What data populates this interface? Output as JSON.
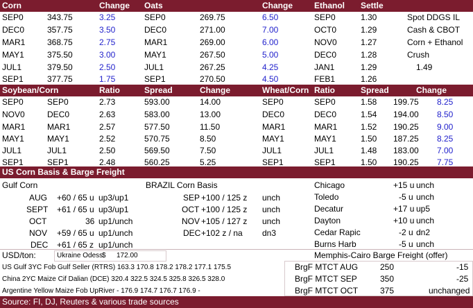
{
  "top_header": {
    "corn": "Corn",
    "change": "Change",
    "oats": "Oats",
    "change2": "Change",
    "ethanol": "Ethanol",
    "settle": "Settle"
  },
  "top_rows": [
    {
      "c": "SEP0",
      "cp": "343.75",
      "cc": "3.25",
      "o": "SEP0",
      "op": "269.75",
      "oc": "6.50",
      "e": "SEP0",
      "es": "1.30",
      "n": "Spot DDGS IL",
      "nv": ""
    },
    {
      "c": "DEC0",
      "cp": "357.75",
      "cc": "3.50",
      "o": "DEC0",
      "op": "271.00",
      "oc": "7.00",
      "e": "OCT0",
      "es": "1.29",
      "n": "Cash & CBOT",
      "nv": ""
    },
    {
      "c": "MAR1",
      "cp": "368.75",
      "cc": "2.75",
      "o": "MAR1",
      "op": "269.00",
      "oc": "6.00",
      "e": "NOV0",
      "es": "1.27",
      "n": "Corn + Ethanol",
      "nv": ""
    },
    {
      "c": "MAY1",
      "cp": "375.50",
      "cc": "3.00",
      "o": "MAY1",
      "op": "267.50",
      "oc": "5.00",
      "e": "DEC0",
      "es": "1.28",
      "n": "Crush",
      "nv": ""
    },
    {
      "c": "JUL1",
      "cp": "379.50",
      "cc": "2.50",
      "o": "JUL1",
      "op": "267.25",
      "oc": "4.25",
      "e": "JAN1",
      "es": "1.29",
      "n": "",
      "nv": "1.49"
    },
    {
      "c": "SEP1",
      "cp": "377.75",
      "cc": "1.75",
      "o": "SEP1",
      "op": "270.50",
      "oc": "4.50",
      "e": "FEB1",
      "es": "1.26",
      "n": "",
      "nv": ""
    }
  ],
  "mid_header": {
    "sc": "Soybean/Corn",
    "ratio": "Ratio",
    "spread": "Spread",
    "change": "Change",
    "wc": "Wheat/Corn",
    "ratio2": "Ratio",
    "spread2": "Spread",
    "change2": "Change"
  },
  "mid_rows": [
    {
      "a": "SEP0",
      "b": "SEP0",
      "r": "2.73",
      "s": "593.00",
      "ch": "14.00",
      "wa": "SEP0",
      "wb": "SEP0",
      "wr": "1.58",
      "ws": "199.75",
      "wch": "8.25"
    },
    {
      "a": "NOV0",
      "b": "DEC0",
      "r": "2.63",
      "s": "583.00",
      "ch": "13.00",
      "wa": "DEC0",
      "wb": "DEC0",
      "wr": "1.54",
      "ws": "194.00",
      "wch": "8.50"
    },
    {
      "a": "MAR1",
      "b": "MAR1",
      "r": "2.57",
      "s": "577.50",
      "ch": "11.50",
      "wa": "MAR1",
      "wb": "MAR1",
      "wr": "1.52",
      "ws": "190.25",
      "wch": "9.00"
    },
    {
      "a": "MAY1",
      "b": "MAY1",
      "r": "2.52",
      "s": "570.75",
      "ch": "8.50",
      "wa": "MAY1",
      "wb": "MAY1",
      "wr": "1.50",
      "ws": "187.25",
      "wch": "8.25"
    },
    {
      "a": "JUL1",
      "b": "JUL1",
      "r": "2.50",
      "s": "569.50",
      "ch": "7.50",
      "wa": "JUL1",
      "wb": "JUL1",
      "wr": "1.48",
      "ws": "183.00",
      "wch": "7.00"
    },
    {
      "a": "SEP1",
      "b": "SEP1",
      "r": "2.48",
      "s": "560.25",
      "ch": "5.25",
      "wa": "SEP1",
      "wb": "SEP1",
      "wr": "1.50",
      "ws": "190.25",
      "wch": "7.75"
    }
  ],
  "basis_header": "US Corn Basis & Barge Freight",
  "gulf_title": "Gulf Corn",
  "brazil_title": "BRAZIL Corn Basis",
  "gulf_rows": [
    {
      "m": "AUG",
      "v": "+60 / 65 u",
      "s": "up3/up1"
    },
    {
      "m": "SEPT",
      "v": "+61 / 65 u",
      "s": "up3/up1"
    },
    {
      "m": "OCT",
      "v": "36",
      "s": "up1/unch"
    },
    {
      "m": "NOV",
      "v": "+59 / 65 u",
      "s": "up1/unch"
    },
    {
      "m": "DEC",
      "v": "+61 / 65 z",
      "s": "up1/unch"
    }
  ],
  "brazil_rows": [
    {
      "m": "SEP",
      "v": "+100 / 125 z",
      "s": "unch"
    },
    {
      "m": "OCT",
      "v": "+100 / 125 z",
      "s": "unch"
    },
    {
      "m": "NOV",
      "v": "+105 / 127 z",
      "s": "unch"
    },
    {
      "m": "DEC",
      "v": "+102 z / na",
      "s": "dn3"
    }
  ],
  "city_rows": [
    {
      "c": "Chicago",
      "v": "+15 u",
      "s": "unch"
    },
    {
      "c": "Toledo",
      "v": "-5 u",
      "s": "unch"
    },
    {
      "c": "Decatur",
      "v": "+17 u",
      "s": "up5"
    },
    {
      "c": "Dayton",
      "v": "+10 u",
      "s": "unch"
    },
    {
      "c": "Cedar Rapic",
      "v": "-2 u",
      "s": "dn2"
    },
    {
      "c": "Burns Harb",
      "v": "-5 u",
      "s": "unch"
    }
  ],
  "usd_ton": "USD/ton:",
  "ukraine_label": "Ukraine Odess",
  "ukraine_cur": "$",
  "ukraine_val": "172.00",
  "memphis_title": "Memphis-Cairo Barge Freight (offer)",
  "fob_rows": [
    {
      "label": "US Gulf  3YC Fob Gulf Seller (RTRS) 163.3  170.8  178.2  178.2  177.1  175.5"
    },
    {
      "label": "China     2YC Maize Cif Dalian (DCE) 320.4  322.5  324.5  325.8  326.5  328.0"
    },
    {
      "label": "Argentine  Yellow Maize Fob UpRiver    -  176.9  174.7  176.7  176.9  -"
    }
  ],
  "barge_rows": [
    {
      "l": "BrgF MTCT AUG",
      "v": "250",
      "c": "-15"
    },
    {
      "l": "BrgF MTCT SEP",
      "v": "350",
      "c": "-25"
    },
    {
      "l": "BrgF MTCT OCT",
      "v": "375",
      "c": "unchanged"
    }
  ],
  "source": "Source: FI, DJ, Reuters & various trade sources"
}
